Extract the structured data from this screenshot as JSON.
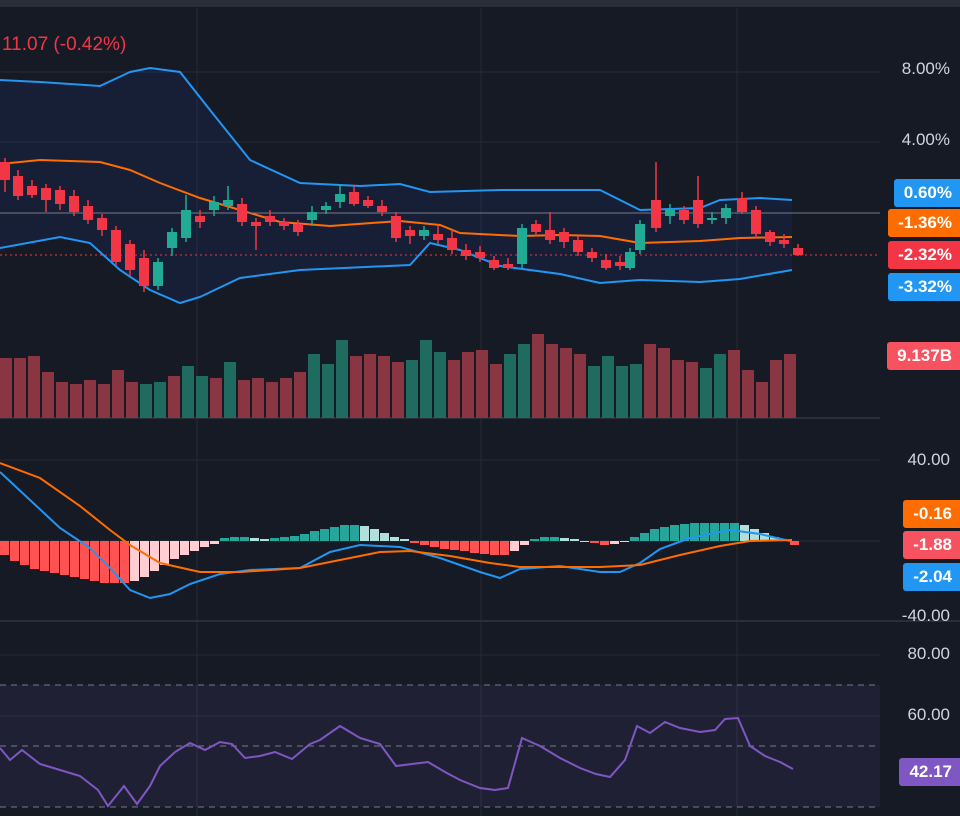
{
  "header": {
    "change_text": "11.07 (-0.42%)"
  },
  "price_axis": {
    "ticks": [
      "8.00%",
      "4.00%"
    ]
  },
  "badges": {
    "bb_upper": "0.60%",
    "bb_basis": "-1.36%",
    "last_price": "-2.32%",
    "bb_lower": "-3.32%",
    "volume": "9.137B",
    "macd_signal": "-0.16",
    "macd_hist": "-1.88",
    "macd_line": "-2.04",
    "rsi": "42.17"
  },
  "macd_axis": {
    "ticks": [
      "40.00",
      "-40.00"
    ]
  },
  "rsi_axis": {
    "ticks": [
      "80.00",
      "60.00"
    ]
  },
  "colors": {
    "background": "#161a25",
    "up": "#22ab94",
    "down": "#f23645",
    "bollinger_band": "#2962ff",
    "bollinger_basis": "#ff6d00",
    "macd_line": "#2196f3",
    "signal_line": "#ff6d00",
    "rsi_line": "#7e57c2"
  }
}
